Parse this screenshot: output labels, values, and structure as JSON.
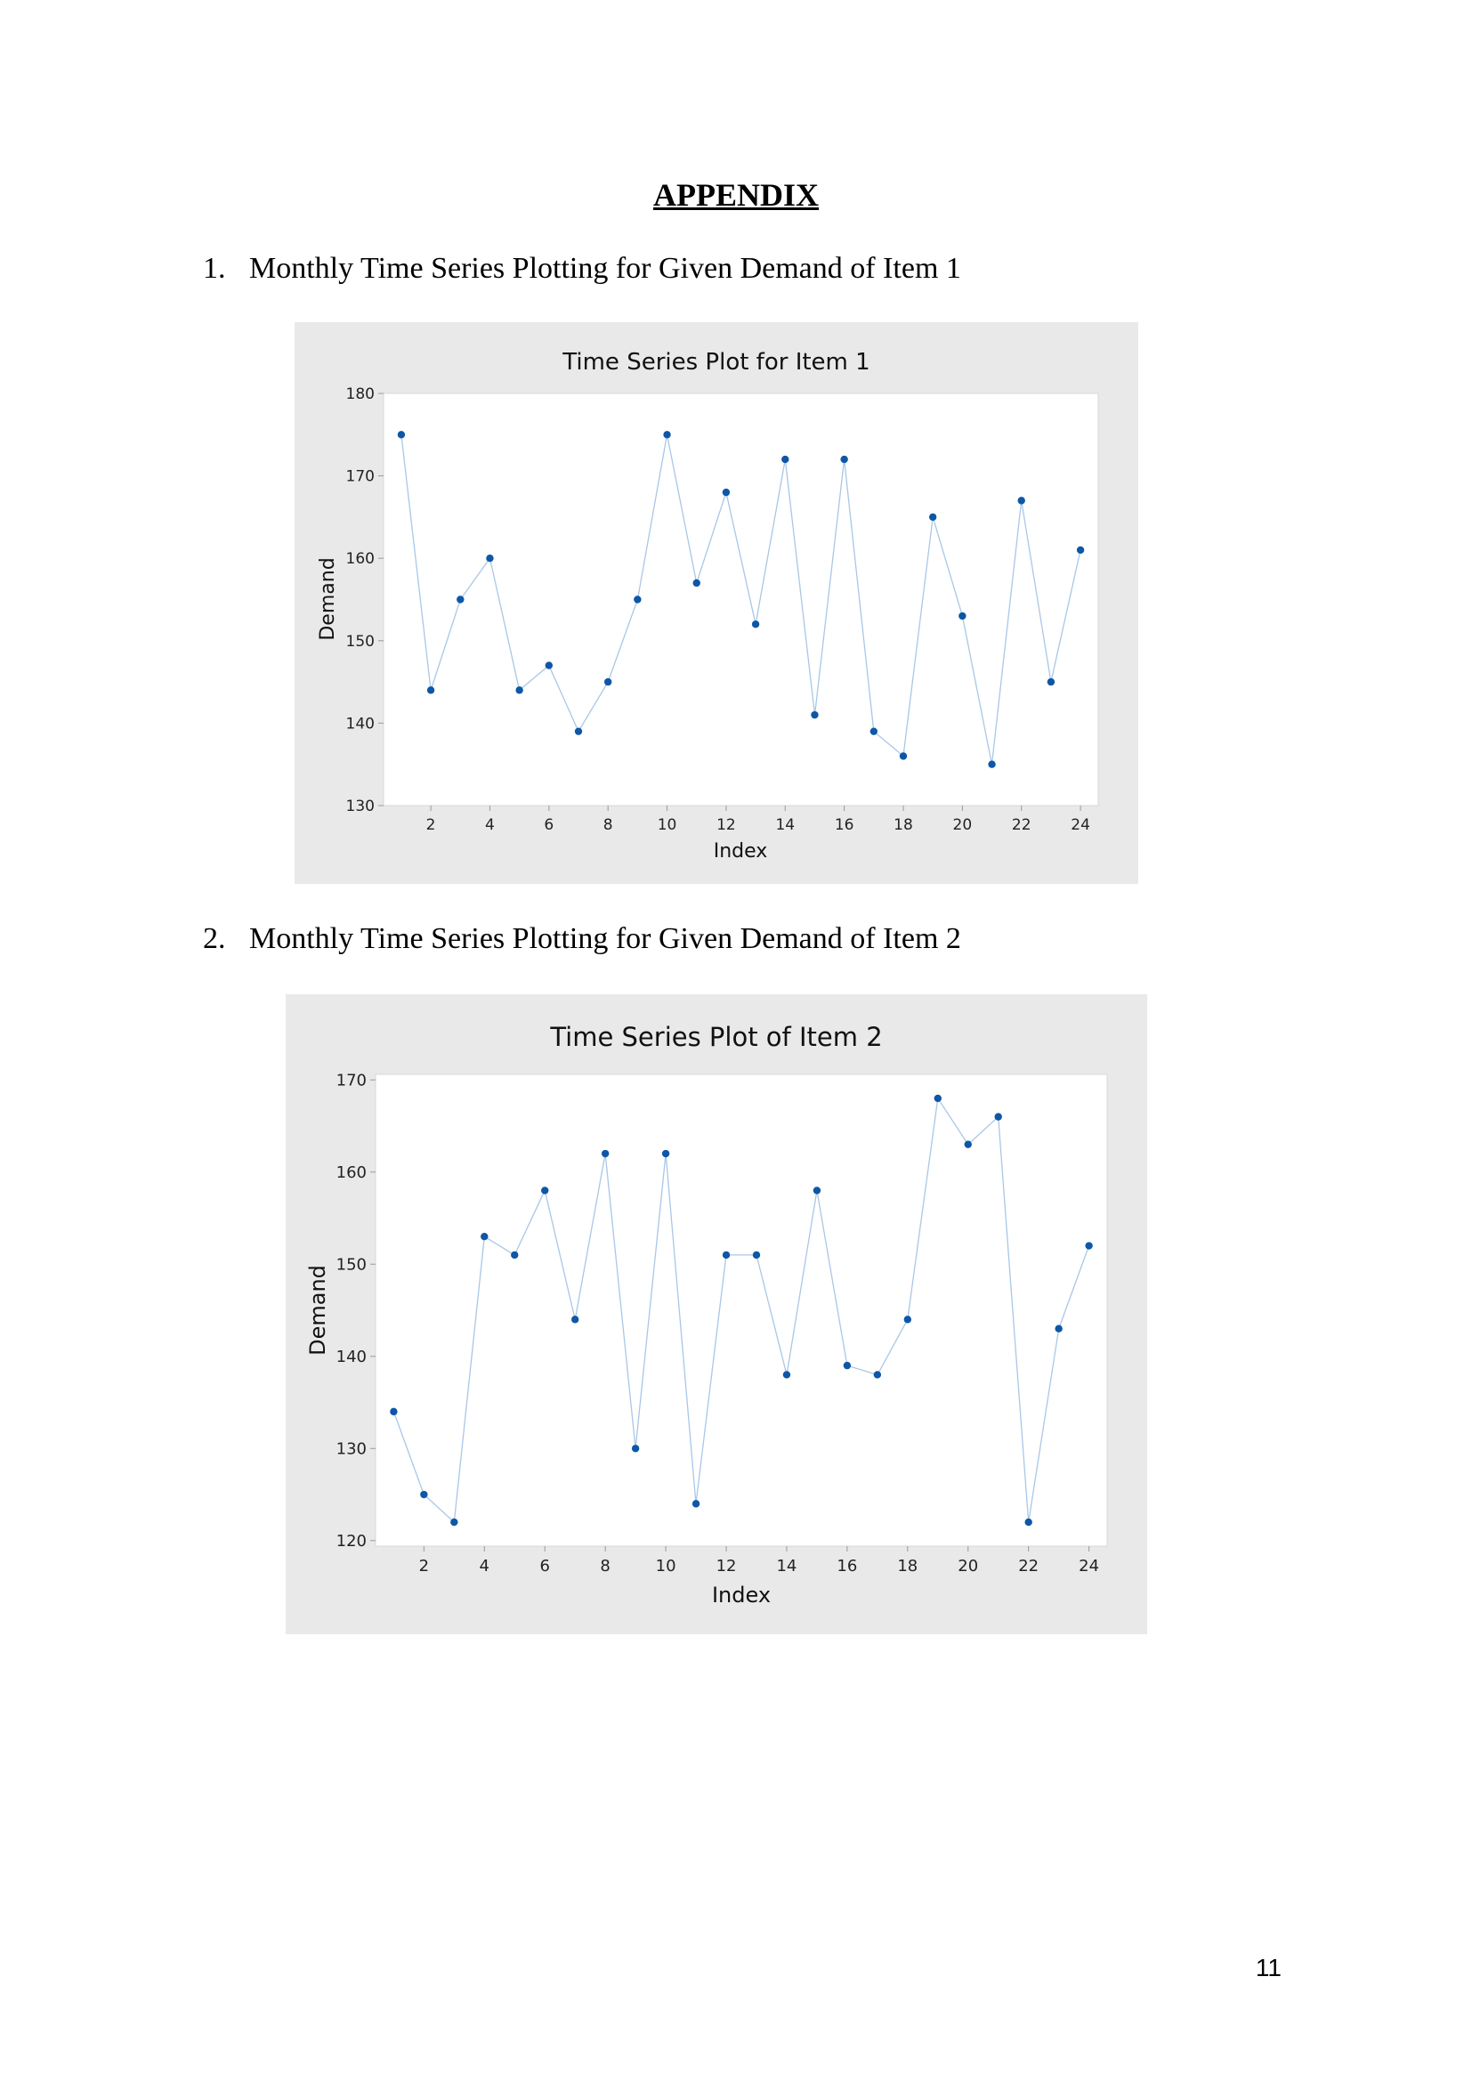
{
  "document": {
    "heading": "APPENDIX",
    "sections": [
      {
        "number": "1.",
        "title": "Monthly Time Series Plotting for Given Demand of Item 1"
      },
      {
        "number": "2.",
        "title": "Monthly Time Series Plotting for Given Demand of Item 2"
      }
    ],
    "page_number": "11"
  },
  "colors": {
    "panel_bg": "#e9e9e9",
    "plot_bg": "#ffffff",
    "line": "#a9c7e6",
    "point": "#0d57a6"
  },
  "chart_data": [
    {
      "type": "line",
      "title": "Time Series Plot for Item 1",
      "xlabel": "Index",
      "ylabel": "Demand",
      "xlim": [
        0.4,
        24.6
      ],
      "ylim": [
        130,
        180
      ],
      "xticks": [
        2,
        4,
        6,
        8,
        10,
        12,
        14,
        16,
        18,
        20,
        22,
        24
      ],
      "yticks": [
        130,
        140,
        150,
        160,
        170,
        180
      ],
      "grid": false,
      "x": [
        1,
        2,
        3,
        4,
        5,
        6,
        7,
        8,
        9,
        10,
        11,
        12,
        13,
        14,
        15,
        16,
        17,
        18,
        19,
        20,
        21,
        22,
        23,
        24
      ],
      "values": [
        175,
        144,
        155,
        160,
        144,
        147,
        139,
        145,
        155,
        175,
        157,
        168,
        152,
        172,
        141,
        172,
        139,
        136,
        165,
        153,
        135,
        167,
        145,
        161
      ]
    },
    {
      "type": "line",
      "title": "Time Series Plot of Item 2",
      "xlabel": "Index",
      "ylabel": "Demand",
      "xlim": [
        0.4,
        24.6
      ],
      "ylim": [
        119.4,
        170.6
      ],
      "xticks": [
        2,
        4,
        6,
        8,
        10,
        12,
        14,
        16,
        18,
        20,
        22,
        24
      ],
      "yticks": [
        120,
        130,
        140,
        150,
        160,
        170
      ],
      "grid": false,
      "x": [
        1,
        2,
        3,
        4,
        5,
        6,
        7,
        8,
        9,
        10,
        11,
        12,
        13,
        14,
        15,
        16,
        17,
        18,
        19,
        20,
        21,
        22,
        23,
        24
      ],
      "values": [
        134,
        125,
        122,
        153,
        151,
        158,
        144,
        162,
        130,
        162,
        124,
        151,
        151,
        138,
        158,
        139,
        138,
        144,
        168,
        163,
        166,
        122,
        143,
        152
      ]
    }
  ]
}
